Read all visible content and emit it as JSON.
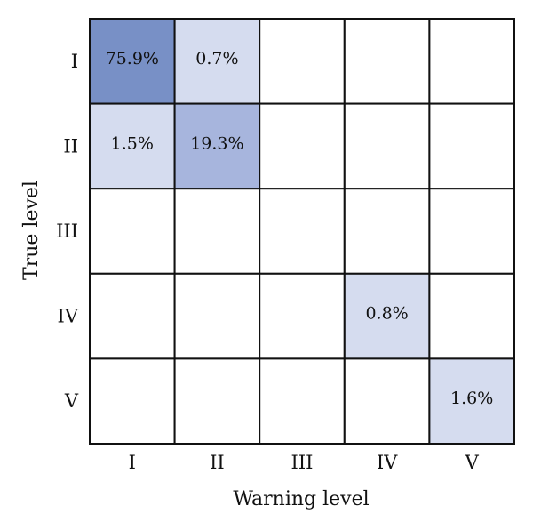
{
  "chart_data": {
    "type": "heatmap",
    "title": "",
    "xlabel": "Warning level",
    "ylabel": "True level",
    "x_categories": [
      "I",
      "II",
      "III",
      "IV",
      "V"
    ],
    "y_categories": [
      "I",
      "II",
      "III",
      "IV",
      "V"
    ],
    "cells": [
      {
        "row": 0,
        "col": 0,
        "value": 75.9,
        "label": "75.9%"
      },
      {
        "row": 0,
        "col": 1,
        "value": 0.7,
        "label": "0.7%"
      },
      {
        "row": 1,
        "col": 0,
        "value": 1.5,
        "label": "1.5%"
      },
      {
        "row": 1,
        "col": 1,
        "value": 19.3,
        "label": "19.3%"
      },
      {
        "row": 3,
        "col": 3,
        "value": 0.8,
        "label": "0.8%"
      },
      {
        "row": 4,
        "col": 4,
        "value": 1.6,
        "label": "1.6%"
      }
    ],
    "colors": {
      "high": "#7890c6",
      "mid": "#a7b5dd",
      "low": "#d5dcef",
      "empty": "#ffffff",
      "grid": "#111111"
    }
  }
}
